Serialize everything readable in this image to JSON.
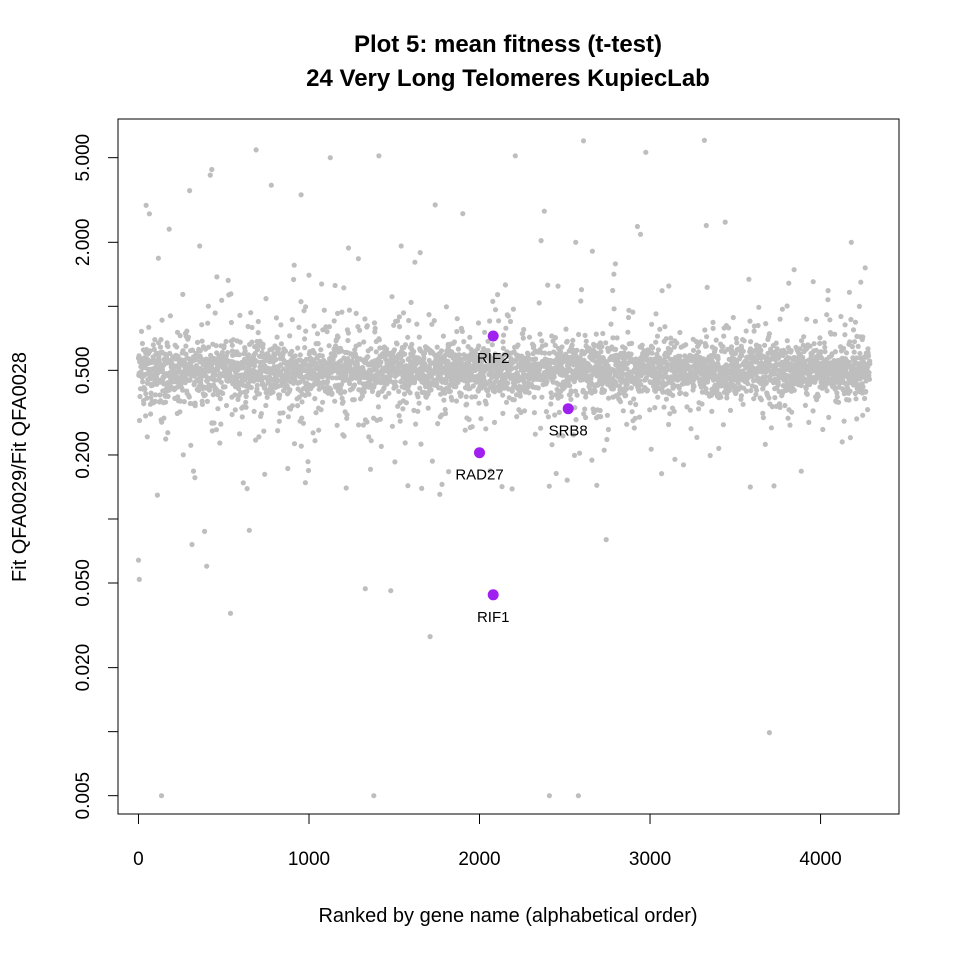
{
  "chart_data": {
    "type": "scatter",
    "title": "Plot 5: mean fitness (t-test)",
    "subtitle": "24 Very Long Telomeres  KupiecLab",
    "xlabel": "Ranked by gene name (alphabetical order)",
    "ylabel": "Fit QFA0029/Fit QFA0028",
    "xlim": [
      -120,
      4460
    ],
    "ylim": [
      0.0041,
      7.6
    ],
    "y_scale": "log",
    "grid": false,
    "legend": "none",
    "x_ticks": [
      {
        "value": 0,
        "label": "0"
      },
      {
        "value": 1000,
        "label": "1000"
      },
      {
        "value": 2000,
        "label": "2000"
      },
      {
        "value": 3000,
        "label": "3000"
      },
      {
        "value": 4000,
        "label": "4000"
      }
    ],
    "y_ticks": [
      {
        "value": 0.005,
        "label": "0.005"
      },
      {
        "value": 0.01,
        "label": ""
      },
      {
        "value": 0.02,
        "label": "0.020"
      },
      {
        "value": 0.05,
        "label": "0.050"
      },
      {
        "value": 0.1,
        "label": ""
      },
      {
        "value": 0.2,
        "label": "0.200"
      },
      {
        "value": 0.5,
        "label": "0.500"
      },
      {
        "value": 1,
        "label": ""
      },
      {
        "value": 2,
        "label": "2.000"
      },
      {
        "value": 5,
        "label": "5.000"
      }
    ],
    "colors": {
      "background_points": "#bebebe",
      "highlight_points": "#a020f0"
    },
    "background_series": {
      "n_points": 4290,
      "x_range": [
        0,
        4290
      ],
      "center": 0.5,
      "color": "#bebebe"
    },
    "outliers": [
      {
        "x": 0,
        "y": 0.064
      },
      {
        "x": 5,
        "y": 0.052
      },
      {
        "x": 135,
        "y": 0.005
      },
      {
        "x": 300,
        "y": 3.5
      },
      {
        "x": 430,
        "y": 4.4
      },
      {
        "x": 400,
        "y": 0.06
      },
      {
        "x": 540,
        "y": 0.036
      },
      {
        "x": 1000,
        "y": 1.4
      },
      {
        "x": 1125,
        "y": 5.0
      },
      {
        "x": 1410,
        "y": 5.1
      },
      {
        "x": 1380,
        "y": 0.005
      },
      {
        "x": 1480,
        "y": 0.046
      },
      {
        "x": 1330,
        "y": 0.047
      },
      {
        "x": 1710,
        "y": 0.028
      },
      {
        "x": 1740,
        "y": 3.0
      },
      {
        "x": 2210,
        "y": 5.1
      },
      {
        "x": 2380,
        "y": 2.8
      },
      {
        "x": 2410,
        "y": 0.005
      },
      {
        "x": 2580,
        "y": 0.005
      },
      {
        "x": 2610,
        "y": 6.0
      },
      {
        "x": 2975,
        "y": 5.3
      },
      {
        "x": 3330,
        "y": 2.4
      },
      {
        "x": 3700,
        "y": 0.0099
      },
      {
        "x": 4180,
        "y": 2.0
      }
    ],
    "highlighted": [
      {
        "label": "RIF2",
        "x": 2080,
        "y": 0.725
      },
      {
        "label": "SRB8",
        "x": 2520,
        "y": 0.33
      },
      {
        "label": "RAD27",
        "x": 2000,
        "y": 0.205
      },
      {
        "label": "RIF1",
        "x": 2080,
        "y": 0.044
      }
    ]
  }
}
